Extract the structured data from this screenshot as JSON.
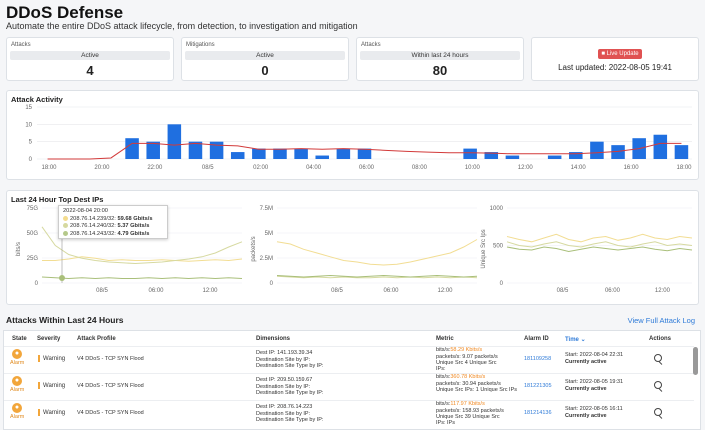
{
  "header": {
    "title": "DDoS Defense",
    "subtitle": "Automate the entire DDoS attack lifecycle, from detection, to investigation and mitigation"
  },
  "stats": [
    {
      "label": "Attacks",
      "pill": "Active",
      "value": "4"
    },
    {
      "label": "Mitigations",
      "pill": "Active",
      "value": "0"
    },
    {
      "label": "Attacks",
      "pill": "Within last 24 hours",
      "value": "80"
    }
  ],
  "live": {
    "button": "Live Update",
    "last_updated": "Last updated: 2022-08-05 19:41"
  },
  "activity": {
    "title": "Attack Activity"
  },
  "top_ips": {
    "title": "Last 24 Hour Top Dest IPs",
    "tooltip": {
      "time": "2022-08-04 20:00",
      "rows": [
        {
          "ip": "208.76.14.239/32:",
          "val": "59.68 Gbits/s",
          "color": "#f4dc8e"
        },
        {
          "ip": "208.76.14.240/32:",
          "val": "5.37 Gbits/s",
          "color": "#d6d9a0"
        },
        {
          "ip": "208.76.14.243/32:",
          "val": "4.79 Gbits/s",
          "color": "#b5c98a"
        }
      ]
    }
  },
  "chart_data": [
    {
      "type": "bar",
      "title": "Attack Activity",
      "ylim": [
        0,
        15
      ],
      "yticks": [
        "0",
        "5",
        "10",
        "15"
      ],
      "xticks": [
        "18:00",
        "20:00",
        "22:00",
        "08/5",
        "02:00",
        "04:00",
        "06:00",
        "08:00",
        "10:00",
        "12:00",
        "14:00",
        "16:00",
        "18:00"
      ],
      "values": [
        0,
        0,
        0,
        0,
        6,
        5,
        10,
        5,
        5,
        2,
        3,
        3,
        3,
        1,
        3,
        3,
        0,
        0,
        0,
        0,
        3,
        2,
        1,
        0,
        1,
        2,
        5,
        4,
        6,
        7,
        4
      ],
      "line": [
        0,
        0,
        0,
        0.3,
        4.5,
        4.5,
        4,
        4.5,
        4,
        3.8,
        2.8,
        2.8,
        3,
        2.8,
        3,
        2.8,
        2.5,
        2.2,
        2,
        1.8,
        1.8,
        1.7,
        1.5,
        1.5,
        1.5,
        1.5,
        1.8,
        2.2,
        3,
        4.5,
        4.5
      ]
    },
    {
      "type": "line",
      "ylabel": "bits/s",
      "yticks": [
        "0",
        "25G",
        "50G",
        "75G"
      ],
      "xticks": [
        "08/5",
        "06:00",
        "12:00"
      ]
    },
    {
      "type": "line",
      "ylabel": "packets/s",
      "yticks": [
        "0",
        "2.5M",
        "5M",
        "7.5M"
      ],
      "xticks": [
        "08/5",
        "06:00",
        "12:00"
      ]
    },
    {
      "type": "line",
      "ylabel": "Unique Src Ips",
      "yticks": [
        "0",
        "500",
        "1000"
      ],
      "xticks": [
        "08/5",
        "06:00",
        "12:00"
      ]
    }
  ],
  "attacks": {
    "title": "Attacks Within Last 24 Hours",
    "view_log": "View Full Attack Log",
    "headers": [
      "State",
      "Severity",
      "Attack Profile",
      "Dimensions",
      "Metric",
      "Alarm ID",
      "Time",
      "Actions"
    ],
    "rows": [
      {
        "state": "Alarm",
        "severity": "Warning",
        "profile": "V4 DDoS - TCP SYN Flood",
        "dim1": "Dest IP: 141.193.39.34",
        "dim2": "Destination Site by IP:",
        "dim3": "Destination Site Type by IP:",
        "m1a": "bits/s:",
        "m1b": "58.29 Kbits/s",
        "m2": "packets/s: 9.07 packets/s",
        "m3": "Unique Src    4 Unique Src",
        "m4": "IPs:",
        "alarm_id": "181109258",
        "start": "Start:  2022-08-04 22:31",
        "status": "Currently active"
      },
      {
        "state": "Alarm",
        "severity": "Warning",
        "profile": "V4 DDoS - TCP SYN Flood",
        "dim1": "Dest IP: 209.50.159.67",
        "dim2": "Destination Site by IP:",
        "dim3": "Destination Site Type by IP:",
        "m1a": "bits/s:",
        "m1b": "360.78 Kbits/s",
        "m2": "packets/s: 30.94 packets/s",
        "m3": "Unique Src IPs: 1 Unique Src IPs",
        "m4": "",
        "alarm_id": "181221305",
        "start": "Start:  2022-08-05 19:31",
        "status": "Currently active"
      },
      {
        "state": "Alarm",
        "severity": "Warning",
        "profile": "V4 DDoS - TCP SYN Flood",
        "dim1": "Dest IP: 208.76.14.223",
        "dim2": "Destination Site by IP:",
        "dim3": "Destination Site Type by IP:",
        "m1a": "bits/s:",
        "m1b": "117.97 Kbits/s",
        "m2": "packets/s: 158.93 packets/s",
        "m3": "Unique Src    39 Unique Src",
        "m4": "IPs:      IPs",
        "alarm_id": "181214136",
        "start": "Start:  2022-08-05 16:11",
        "status": "Currently active"
      }
    ]
  }
}
